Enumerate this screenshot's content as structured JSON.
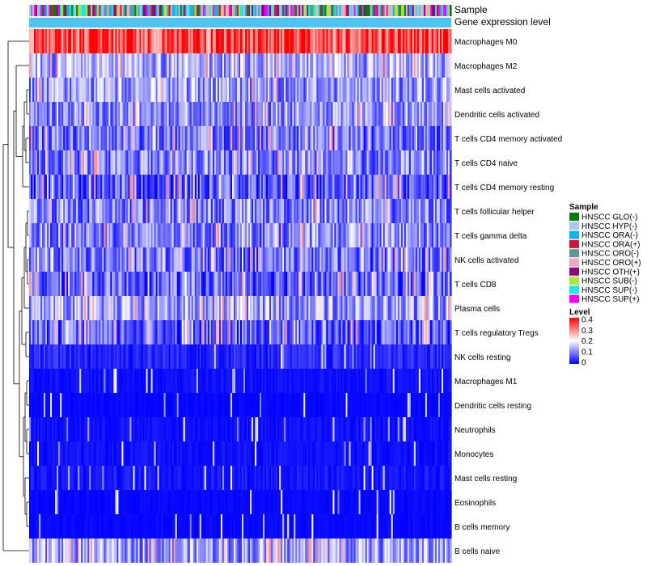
{
  "chart_data": {
    "type": "heatmap",
    "title": "",
    "row_order": [
      "Macrophages M0",
      "Macrophages M2",
      "Mast cells activated",
      "Dendritic cells activated",
      "T cells CD4 memory activated",
      "T cells CD4 naive",
      "T cells CD4 memory resting",
      "T cells follicular helper",
      "T cells gamma delta",
      "NK cells activated",
      "T cells CD8",
      "Plasma cells",
      "T cells regulatory  Tregs",
      "NK cells resting",
      "Macrophages M1",
      "Dendritic cells resting",
      "Neutrophils",
      "Monocytes",
      "Mast cells resting",
      "Eosinophils",
      "B cells memory",
      "B cells naive"
    ],
    "row_mean_levels": [
      0.33,
      0.13,
      0.12,
      0.11,
      0.09,
      0.1,
      0.07,
      0.1,
      0.1,
      0.09,
      0.08,
      0.12,
      0.07,
      0.05,
      0.02,
      0.01,
      0.02,
      0.02,
      0.03,
      0.01,
      0.01,
      0.12
    ],
    "n_samples": 260,
    "annotation_tracks": [
      "Sample",
      "Gene expression level"
    ],
    "sample_legend": {
      "title": "Sample",
      "entries": [
        {
          "label": "HNSCC GLO(-)",
          "color": "#0a7a0a"
        },
        {
          "label": "HNSCC HYP(-)",
          "color": "#a8c6f0"
        },
        {
          "label": "HNSCC ORA(-)",
          "color": "#18b0e8"
        },
        {
          "label": "HNSCC ORA(+)",
          "color": "#d2143c"
        },
        {
          "label": "HNSCC ORO(-)",
          "color": "#5a9898"
        },
        {
          "label": "HNSCC ORO(+)",
          "color": "#f2a8bc"
        },
        {
          "label": "HNSCC OTH(+)",
          "color": "#8b0a7a"
        },
        {
          "label": "HNSCC SUB(-)",
          "color": "#a8e83c"
        },
        {
          "label": "HNSCC SUP(-)",
          "color": "#1ee6e6"
        },
        {
          "label": "HNSCC SUP(+)",
          "color": "#ff00ff"
        }
      ]
    },
    "level_legend": {
      "title": "Level",
      "ticks": [
        "0.4",
        "0.3",
        "0.2",
        "0.1",
        "0"
      ],
      "tick_values": [
        0.4,
        0.3,
        0.2,
        0.1,
        0
      ],
      "range": [
        0,
        0.4
      ]
    },
    "gene_expression_color": "#4fc4f0",
    "colors": {
      "low": "#0000ff",
      "mid": "#ffffff",
      "high": "#ff0000"
    }
  }
}
